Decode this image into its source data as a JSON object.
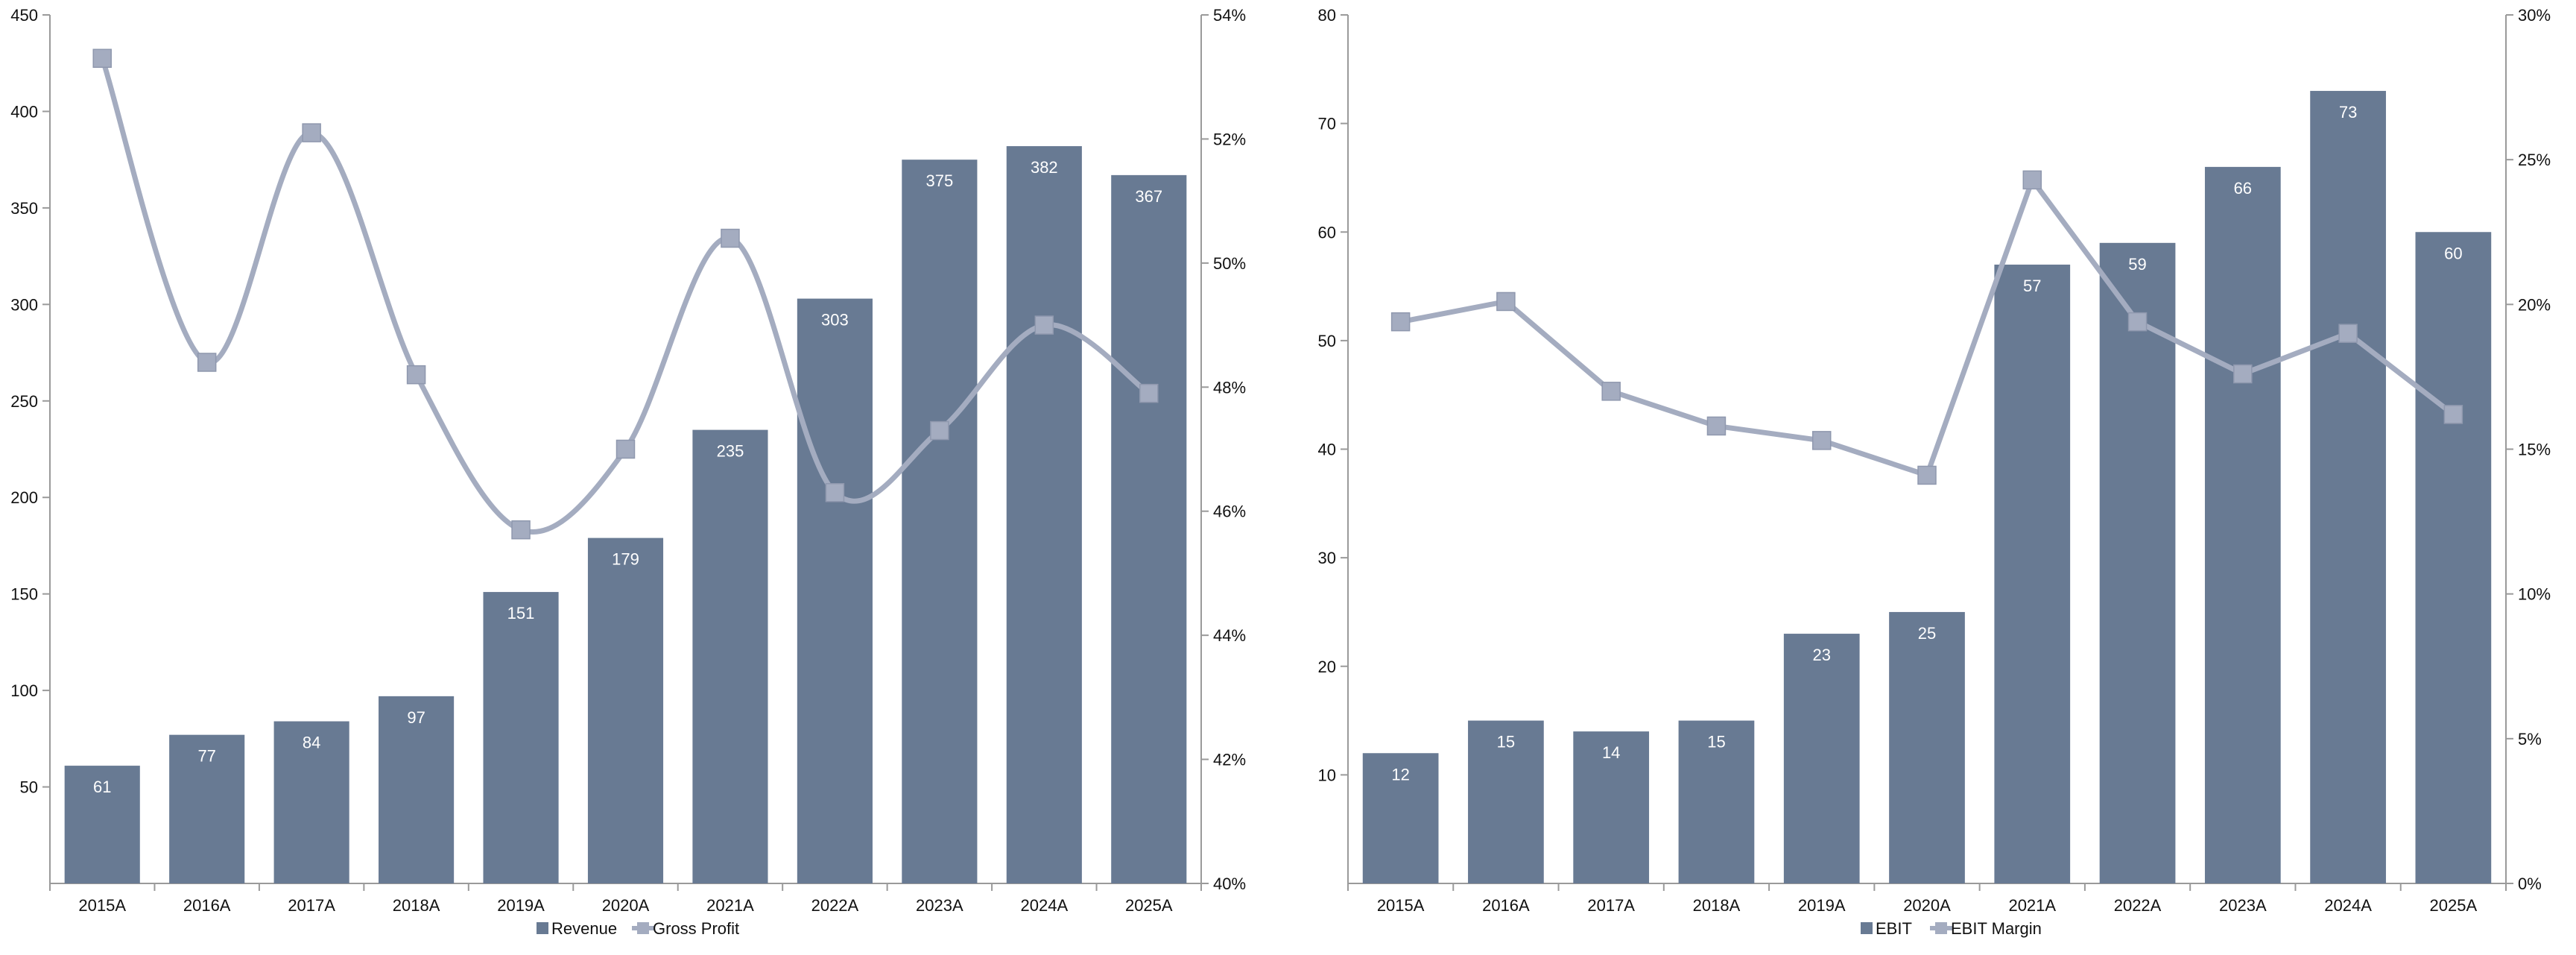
{
  "colors": {
    "bar": "#687a93",
    "line": "#a4acc0",
    "axis": "#9a9a9a",
    "text": "#111111",
    "bar_label": "#ffffff"
  },
  "chart_data": [
    {
      "type": "bar",
      "categories": [
        "2015A",
        "2016A",
        "2017A",
        "2018A",
        "2019A",
        "2020A",
        "2021A",
        "2022A",
        "2023A",
        "2024A",
        "2025A"
      ],
      "series": [
        {
          "name": "Revenue",
          "kind": "bar",
          "axis": "left",
          "values": [
            61,
            77,
            84,
            97,
            151,
            179,
            235,
            303,
            375,
            382,
            367
          ],
          "labels": [
            "61",
            "77",
            "84",
            "97",
            "151",
            "179",
            "235",
            "303",
            "375",
            "382",
            "367"
          ]
        },
        {
          "name": "Gross Profit",
          "kind": "line",
          "axis": "right",
          "smooth": true,
          "values": [
            53.3,
            48.4,
            52.1,
            48.2,
            45.7,
            47.0,
            50.4,
            46.3,
            47.3,
            49.0,
            47.9
          ]
        }
      ],
      "left_axis": {
        "min": 0,
        "max": 450,
        "ticks": [
          50,
          100,
          150,
          200,
          250,
          300,
          350,
          400,
          450
        ],
        "tick_labels": [
          "50",
          "100",
          "150",
          "200",
          "250",
          "300",
          "350",
          "400",
          "450"
        ]
      },
      "right_axis": {
        "min": 40,
        "max": 54,
        "ticks": [
          40,
          42,
          44,
          46,
          48,
          50,
          52,
          54
        ],
        "tick_labels": [
          "40%",
          "42%",
          "44%",
          "46%",
          "48%",
          "50%",
          "52%",
          "54%"
        ]
      },
      "legend": {
        "position": "bottom",
        "labels": [
          "Revenue",
          "Gross Profit"
        ]
      }
    },
    {
      "type": "bar",
      "categories": [
        "2015A",
        "2016A",
        "2017A",
        "2018A",
        "2019A",
        "2020A",
        "2021A",
        "2022A",
        "2023A",
        "2024A",
        "2025A"
      ],
      "series": [
        {
          "name": "EBIT",
          "kind": "bar",
          "axis": "left",
          "values": [
            12,
            15,
            14,
            15,
            23,
            25,
            57,
            59,
            66,
            73,
            60
          ],
          "labels": [
            "12",
            "15",
            "14",
            "15",
            "23",
            "25",
            "57",
            "59",
            "66",
            "73",
            "60"
          ]
        },
        {
          "name": "EBIT Margin",
          "kind": "line",
          "axis": "right",
          "smooth": false,
          "values": [
            19.4,
            20.1,
            17.0,
            15.8,
            15.3,
            14.1,
            24.3,
            19.4,
            17.6,
            19.0,
            16.2
          ]
        }
      ],
      "left_axis": {
        "min": 0,
        "max": 80,
        "ticks": [
          10,
          20,
          30,
          40,
          50,
          60,
          70,
          80
        ],
        "tick_labels": [
          "10",
          "20",
          "30",
          "40",
          "50",
          "60",
          "70",
          "80"
        ]
      },
      "right_axis": {
        "min": 0,
        "max": 30,
        "ticks": [
          0,
          5,
          10,
          15,
          20,
          25,
          30
        ],
        "tick_labels": [
          "0%",
          "5%",
          "10%",
          "15%",
          "20%",
          "25%",
          "30%"
        ]
      },
      "legend": {
        "position": "bottom",
        "labels": [
          "EBIT",
          "EBIT Margin"
        ]
      }
    }
  ]
}
